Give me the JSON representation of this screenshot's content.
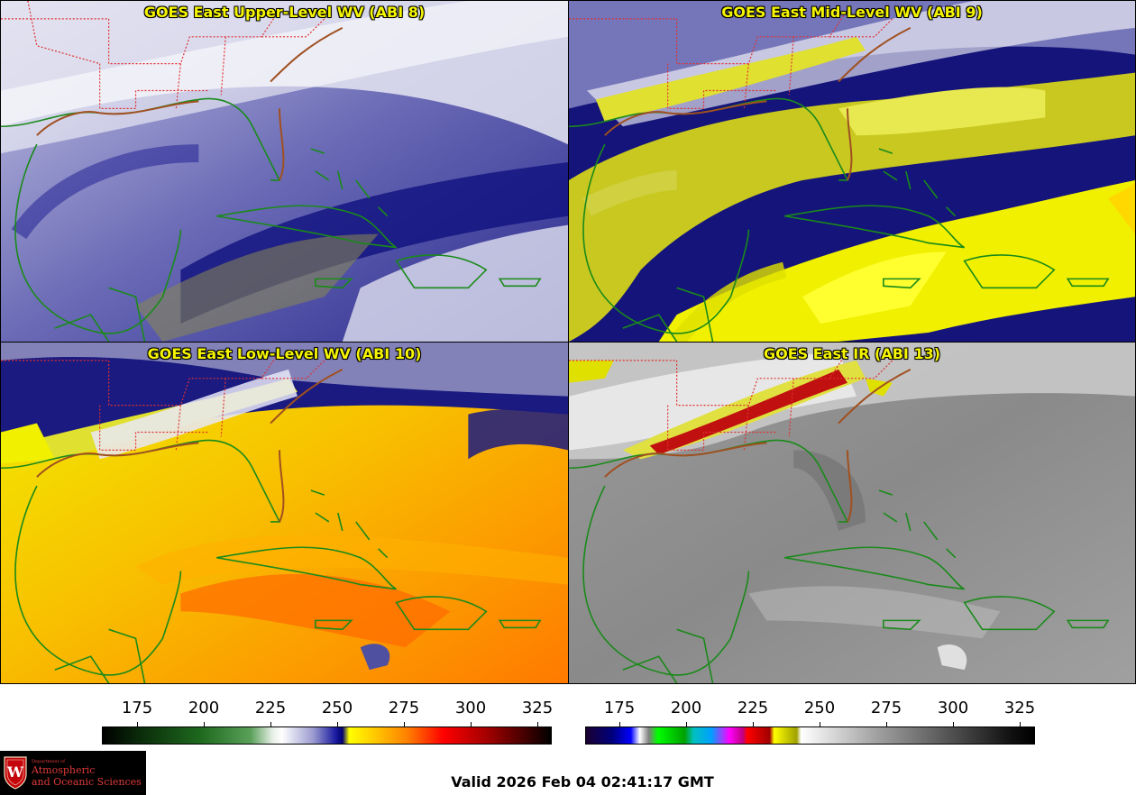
{
  "panels": {
    "upper_wv": {
      "title": "GOES East Upper-Level WV (ABI 8)"
    },
    "mid_wv": {
      "title": "GOES East Mid-Level WV (ABI 9)"
    },
    "low_wv": {
      "title": "GOES East Low-Level WV (ABI 10)"
    },
    "ir": {
      "title": "GOES East IR (ABI 13)"
    }
  },
  "colorbars": {
    "wv": {
      "ticks": [
        "175",
        "200",
        "225",
        "250",
        "275",
        "300",
        "325"
      ]
    },
    "ir": {
      "ticks": [
        "175",
        "200",
        "225",
        "250",
        "275",
        "300",
        "325"
      ]
    }
  },
  "logo": {
    "department": "Department of",
    "line1": "Atmospheric",
    "line2": "and Oceanic Sciences",
    "letter": "W"
  },
  "valid_time": "Valid 2026 Feb 04 02:41:17 GMT",
  "colors": {
    "title_text": "#f5f500",
    "state_borders": "#e03030",
    "coastlines": "#1a8a1a",
    "logo_red": "#e03a3a"
  },
  "icons": [
    "uw-crest-icon"
  ]
}
